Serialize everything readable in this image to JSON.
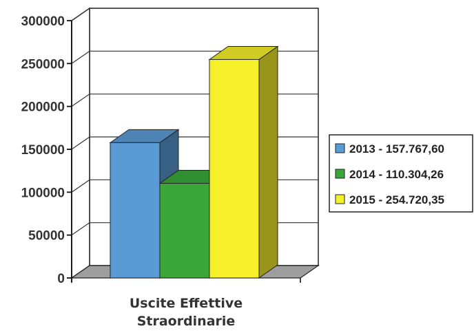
{
  "chart_data": {
    "type": "bar",
    "categories": [
      "Uscite Effettive Straordinarie"
    ],
    "category_label_lines": [
      "Uscite Effettive",
      "Straordinarie"
    ],
    "series": [
      {
        "name": "2013 - 157.767,60",
        "values": [
          157767.6
        ],
        "color": "#5b9bd5"
      },
      {
        "name": "2014 - 110.304,26",
        "values": [
          110304.26
        ],
        "color": "#3aa63a"
      },
      {
        "name": "2015 - 254.720,35",
        "values": [
          254720.35
        ],
        "color": "#f5f02a"
      }
    ],
    "ylim": [
      0,
      300000
    ],
    "yticks": [
      0,
      50000,
      100000,
      150000,
      200000,
      250000,
      300000
    ],
    "ytick_labels": [
      "0",
      "50000",
      "100000",
      "150000",
      "200000",
      "250000",
      "300000"
    ],
    "grid": true,
    "legend": "right",
    "style": "3d-clustered-column"
  }
}
